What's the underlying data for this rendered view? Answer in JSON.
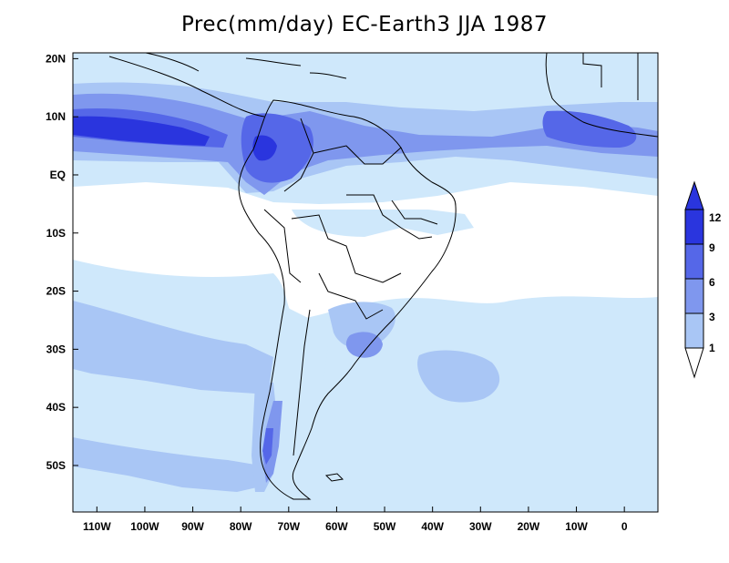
{
  "title": "Prec(mm/day) EC-Earth3 JJA 1987",
  "map": {
    "variable": "Prec",
    "units": "mm/day",
    "model": "EC-Earth3",
    "season": "JJA",
    "year": 1987,
    "lon_range": [
      -115,
      7
    ],
    "lat_range": [
      -58,
      21
    ],
    "lon_ticks": [
      "110W",
      "100W",
      "90W",
      "80W",
      "70W",
      "60W",
      "50W",
      "40W",
      "30W",
      "20W",
      "10W",
      "0"
    ],
    "lat_ticks": [
      "20N",
      "10N",
      "EQ",
      "10S",
      "20S",
      "30S",
      "40S",
      "50S"
    ]
  },
  "colorbar": {
    "levels": [
      "1",
      "3",
      "6",
      "9",
      "12"
    ],
    "colors": {
      "c1": "#cfe8fb",
      "c3": "#a9c6f5",
      "c6": "#7f97ee",
      "c9": "#5567e8",
      "c12": "#2a35de"
    }
  }
}
